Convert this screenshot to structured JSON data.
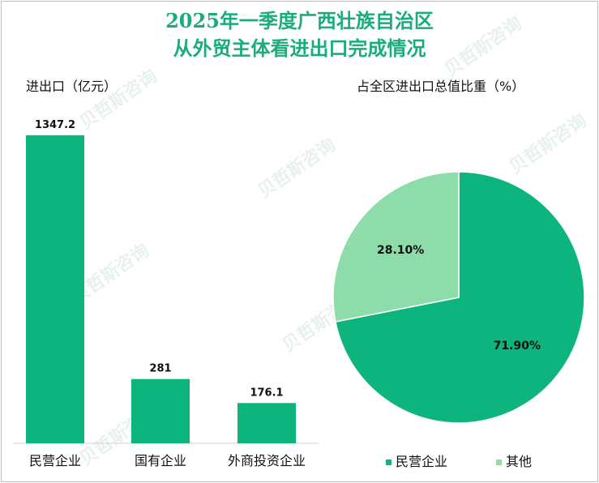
{
  "title_line1": "2025年一季度广西壮族自治区",
  "title_line2": "从外贸主体看进出口完成情况",
  "watermark_text": "贝哲斯咨询",
  "colors": {
    "primary": "#0db47e",
    "secondary": "#8ddcaa",
    "title": "#1aad7a"
  },
  "chart_data": [
    {
      "type": "bar",
      "title": "进出口（亿元）",
      "categories": [
        "民营企业",
        "国有企业",
        "外商投资企业"
      ],
      "values": [
        1347.2,
        281,
        176.1
      ],
      "value_labels": [
        "1347.2",
        "281",
        "176.1"
      ],
      "ylim": [
        0,
        1460
      ]
    },
    {
      "type": "pie",
      "title": "占全区进出口总值比重（%）",
      "labels": [
        "民营企业",
        "其他"
      ],
      "values": [
        71.9,
        28.1
      ],
      "value_labels": [
        "71.90%",
        "28.10%"
      ]
    }
  ]
}
